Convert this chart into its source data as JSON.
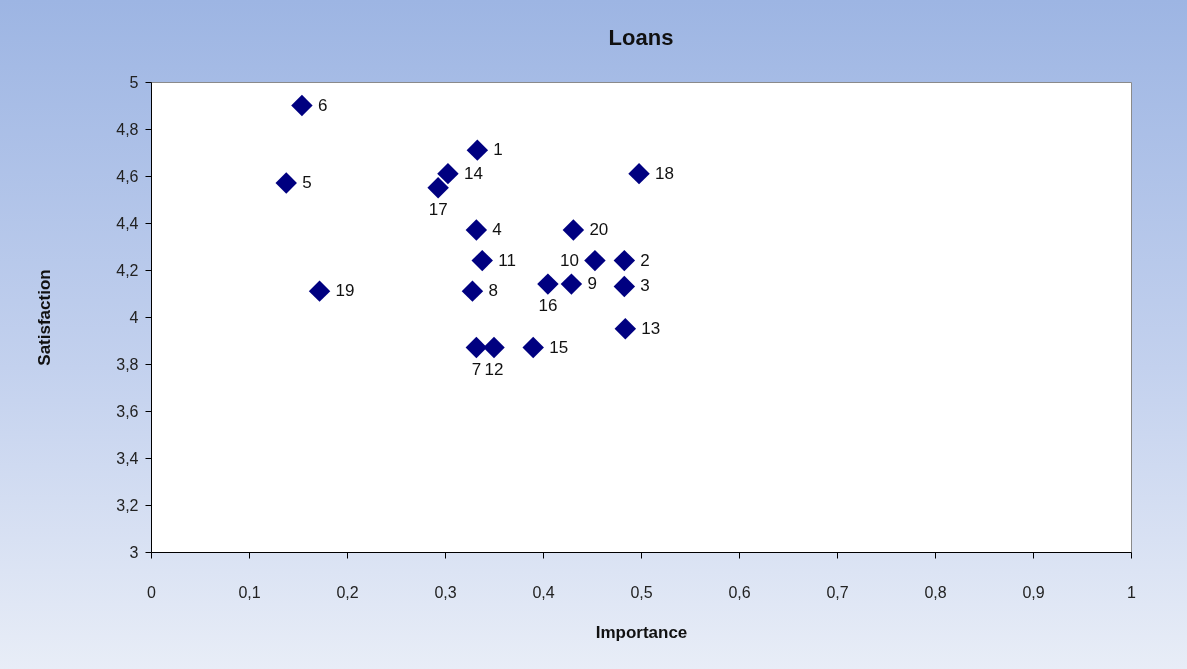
{
  "chart_data": {
    "type": "scatter",
    "title": "Loans",
    "xlabel": "Importance",
    "ylabel": "Satisfaction",
    "x": [
      0.333,
      0.483,
      0.483,
      0.332,
      0.138,
      0.154,
      0.332,
      0.328,
      0.429,
      0.453,
      0.338,
      0.35,
      0.484,
      0.303,
      0.39,
      0.405,
      0.293,
      0.498,
      0.172,
      0.431
    ],
    "values": [
      4.71,
      4.24,
      4.13,
      4.37,
      4.57,
      4.9,
      3.87,
      4.11,
      4.14,
      4.24,
      4.24,
      3.87,
      3.95,
      4.61,
      3.87,
      4.14,
      4.55,
      4.61,
      4.11,
      4.37
    ],
    "color": "#000080",
    "marker": "diamond",
    "annotations": [
      {
        "text": "1",
        "x": 0.333,
        "y": 4.71
      },
      {
        "text": "2",
        "x": 0.483,
        "y": 4.24
      },
      {
        "text": "3",
        "x": 0.483,
        "y": 4.13
      },
      {
        "text": "4",
        "x": 0.332,
        "y": 4.37
      },
      {
        "text": "5",
        "x": 0.138,
        "y": 4.57
      },
      {
        "text": "6",
        "x": 0.154,
        "y": 4.9
      },
      {
        "text": "7",
        "x": 0.332,
        "y": 3.87
      },
      {
        "text": "8",
        "x": 0.328,
        "y": 4.11
      },
      {
        "text": "9",
        "x": 0.429,
        "y": 4.14
      },
      {
        "text": "10",
        "x": 0.453,
        "y": 4.24
      },
      {
        "text": "11",
        "x": 0.338,
        "y": 4.24
      },
      {
        "text": "12",
        "x": 0.35,
        "y": 3.87
      },
      {
        "text": "13",
        "x": 0.484,
        "y": 3.95
      },
      {
        "text": "14",
        "x": 0.303,
        "y": 4.61
      },
      {
        "text": "15",
        "x": 0.39,
        "y": 3.87
      },
      {
        "text": "16",
        "x": 0.405,
        "y": 4.14
      },
      {
        "text": "17",
        "x": 0.293,
        "y": 4.55
      },
      {
        "text": "18",
        "x": 0.498,
        "y": 4.61
      },
      {
        "text": "19",
        "x": 0.172,
        "y": 4.11
      },
      {
        "text": "20",
        "x": 0.431,
        "y": 4.37
      }
    ],
    "xlim": [
      0,
      1
    ],
    "xticks": [
      0,
      {
        "value": 0.1,
        "label": "0,1"
      },
      {
        "value": 0.2,
        "label": "0,2"
      },
      {
        "value": 0.3,
        "label": "0,3"
      },
      {
        "value": 0.4,
        "label": "0,4"
      },
      {
        "value": 0.5,
        "label": "0,5"
      },
      {
        "value": 0.6,
        "label": "0,6"
      },
      {
        "value": 0.7,
        "label": "0,7"
      },
      {
        "value": 0.8,
        "label": "0,8"
      },
      {
        "value": 0.9,
        "label": "0,9"
      },
      1
    ],
    "ylim": [
      3,
      5
    ],
    "yticks": [
      3,
      {
        "value": 3.2,
        "label": "3,2"
      },
      {
        "value": 3.4,
        "label": "3,4"
      },
      {
        "value": 3.6,
        "label": "3,6"
      },
      {
        "value": 3.8,
        "label": "3,8"
      },
      4,
      {
        "value": 4.2,
        "label": "4,2"
      },
      {
        "value": 4.4,
        "label": "4,4"
      },
      {
        "value": 4.6,
        "label": "4,6"
      },
      {
        "value": 4.8,
        "label": "4,8"
      },
      5
    ]
  }
}
